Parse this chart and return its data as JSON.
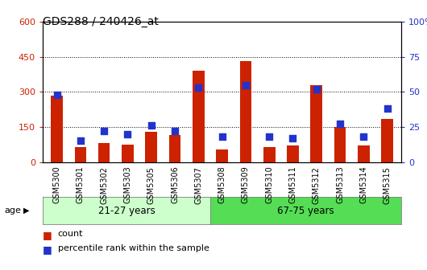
{
  "title": "GDS288 / 240426_at",
  "samples": [
    "GSM5300",
    "GSM5301",
    "GSM5302",
    "GSM5303",
    "GSM5305",
    "GSM5306",
    "GSM5307",
    "GSM5308",
    "GSM5309",
    "GSM5310",
    "GSM5311",
    "GSM5312",
    "GSM5313",
    "GSM5314",
    "GSM5315"
  ],
  "counts": [
    285,
    65,
    80,
    75,
    130,
    115,
    390,
    55,
    430,
    65,
    70,
    330,
    150,
    70,
    185
  ],
  "percentiles_pct": [
    48,
    15,
    22,
    20,
    26,
    22,
    53,
    18,
    55,
    18,
    17,
    52,
    27,
    18,
    38
  ],
  "group1_label": "21-27 years",
  "group2_label": "67-75 years",
  "bar_color": "#cc2200",
  "dot_color": "#2233cc",
  "ylim_left": [
    0,
    600
  ],
  "ylim_right": [
    0,
    100
  ],
  "yticks_left": [
    0,
    150,
    300,
    450,
    600
  ],
  "yticks_right": [
    0,
    25,
    50,
    75,
    100
  ],
  "legend_count": "count",
  "legend_pct": "percentile rank within the sample",
  "group1_color": "#ccffcc",
  "group2_color": "#55dd55",
  "group_divider": 7,
  "bg_color": "#ffffff"
}
